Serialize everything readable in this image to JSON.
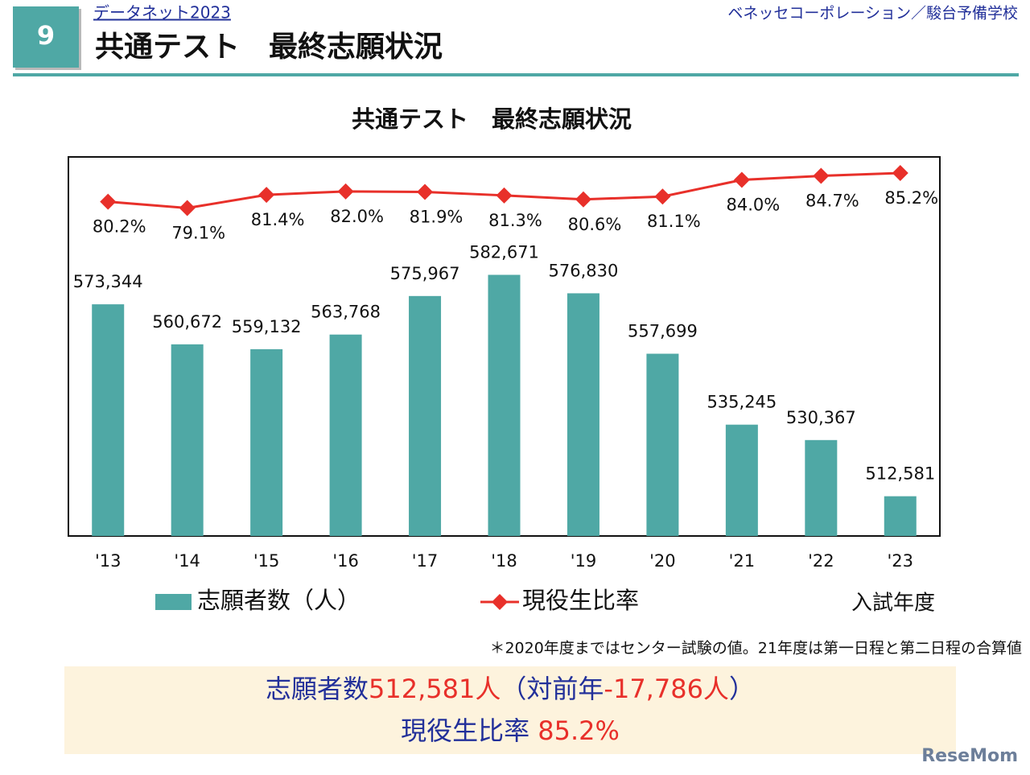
{
  "header": {
    "badge": "9",
    "series_name": "データネット2023",
    "title": "共通テスト　最終志願状況",
    "publisher": "ベネッセコーポレーション／駿台予備学校"
  },
  "chart_data": {
    "type": "bar-line",
    "title": "共通テスト　最終志願状況",
    "categories": [
      "'13",
      "'14",
      "'15",
      "'16",
      "'17",
      "'18",
      "'19",
      "'20",
      "'21",
      "'22",
      "'23"
    ],
    "x_label": "入試年度",
    "ylim": [
      500000,
      620000
    ],
    "y2lim": [
      22,
      88
    ],
    "series": [
      {
        "name": "志願者数（人）",
        "type": "bar",
        "color": "#4fa8a5",
        "values": [
          573344,
          560672,
          559132,
          563768,
          575967,
          582671,
          576830,
          557699,
          535245,
          530367,
          512581
        ],
        "value_labels": [
          "573,344",
          "560,672",
          "559,132",
          "563,768",
          "575,967",
          "582,671",
          "576,830",
          "557,699",
          "535,245",
          "530,367",
          "512,581"
        ]
      },
      {
        "name": "現役生比率",
        "type": "line",
        "axis": "y2",
        "color": "#e8302a",
        "values": [
          80.2,
          79.1,
          81.4,
          82.0,
          81.9,
          81.3,
          80.6,
          81.1,
          84.0,
          84.7,
          85.2
        ],
        "value_labels": [
          "80.2%",
          "79.1%",
          "81.4%",
          "82.0%",
          "81.9%",
          "81.3%",
          "80.6%",
          "81.1%",
          "84.0%",
          "84.7%",
          "85.2%"
        ]
      }
    ],
    "note": "＊2020年度まではセンター試験の値。21年度は第一日程と第二日程の合算値"
  },
  "summary": {
    "lines": [
      [
        {
          "text": "志願者数",
          "color": "#22309a"
        },
        {
          "text": "512,581人",
          "color": "#e8302a"
        },
        {
          "text": "（対前年",
          "color": "#22309a"
        },
        {
          "text": "-17,786人",
          "color": "#e8302a"
        },
        {
          "text": "）",
          "color": "#22309a"
        }
      ],
      [
        {
          "text": "現役生比率 ",
          "color": "#22309a"
        },
        {
          "text": "85.2%",
          "color": "#e8302a"
        }
      ]
    ]
  },
  "watermark": "ReseMom"
}
